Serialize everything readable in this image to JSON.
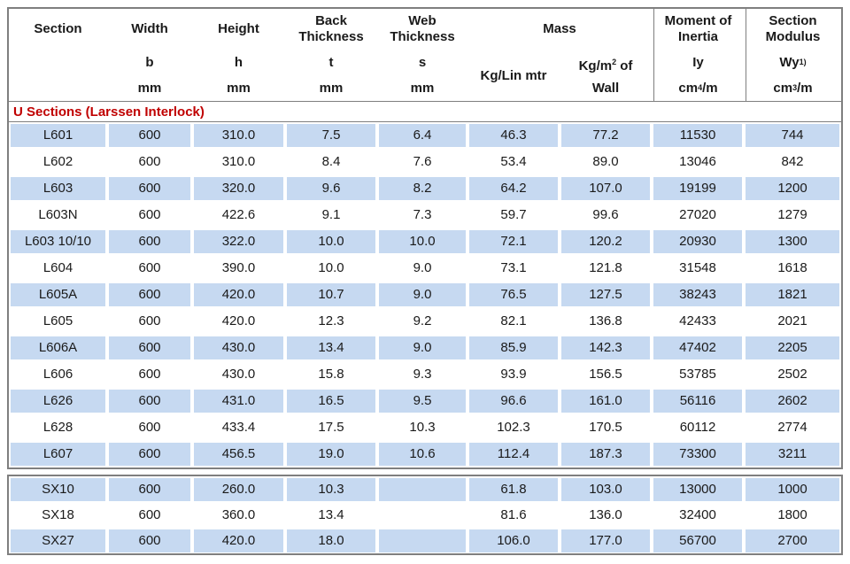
{
  "colors": {
    "row_stripe": "#c6d9f1",
    "border_gray": "#7f7f7f",
    "group_label_red": "#c00000"
  },
  "table": {
    "header": {
      "section": {
        "title": "Section"
      },
      "width": {
        "title": "Width",
        "symbol": "b",
        "unit": "mm"
      },
      "height": {
        "title": "Height",
        "symbol": "h",
        "unit": "mm"
      },
      "back_thickness": {
        "title_line1": "Back",
        "title_line2": "Thickness",
        "symbol": "t",
        "unit": "mm"
      },
      "web_thickness": {
        "title_line1": "Web",
        "title_line2": "Thickness",
        "symbol": "s",
        "unit": "mm"
      },
      "mass": {
        "title": "Mass",
        "sub1": "Kg/Lin mtr",
        "sub2_pre": "Kg/m",
        "sub2_sup": "2",
        "sub2_post": " of",
        "sub2_line2": "Wall"
      },
      "moment_of_inertia": {
        "title_line1": "Moment of",
        "title_line2": "Inertia",
        "symbol": "Iy",
        "unit_pre": "cm",
        "unit_sup": "4",
        "unit_post": "/m"
      },
      "section_modulus": {
        "title_line1": "Section",
        "title_line2": "Modulus",
        "symbol_pre": "Wy",
        "symbol_sup": "1)",
        "unit_pre": "cm",
        "unit_sup": "3",
        "unit_post": "/m"
      }
    },
    "group_label": "U Sections (Larssen Interlock)",
    "rows": [
      [
        "L601",
        "600",
        "310.0",
        "7.5",
        "6.4",
        "46.3",
        "77.2",
        "11530",
        "744"
      ],
      [
        "L602",
        "600",
        "310.0",
        "8.4",
        "7.6",
        "53.4",
        "89.0",
        "13046",
        "842"
      ],
      [
        "L603",
        "600",
        "320.0",
        "9.6",
        "8.2",
        "64.2",
        "107.0",
        "19199",
        "1200"
      ],
      [
        "L603N",
        "600",
        "422.6",
        "9.1",
        "7.3",
        "59.7",
        "99.6",
        "27020",
        "1279"
      ],
      [
        "L603 10/10",
        "600",
        "322.0",
        "10.0",
        "10.0",
        "72.1",
        "120.2",
        "20930",
        "1300"
      ],
      [
        "L604",
        "600",
        "390.0",
        "10.0",
        "9.0",
        "73.1",
        "121.8",
        "31548",
        "1618"
      ],
      [
        "L605A",
        "600",
        "420.0",
        "10.7",
        "9.0",
        "76.5",
        "127.5",
        "38243",
        "1821"
      ],
      [
        "L605",
        "600",
        "420.0",
        "12.3",
        "9.2",
        "82.1",
        "136.8",
        "42433",
        "2021"
      ],
      [
        "L606A",
        "600",
        "430.0",
        "13.4",
        "9.0",
        "85.9",
        "142.3",
        "47402",
        "2205"
      ],
      [
        "L606",
        "600",
        "430.0",
        "15.8",
        "9.3",
        "93.9",
        "156.5",
        "53785",
        "2502"
      ],
      [
        "L626",
        "600",
        "431.0",
        "16.5",
        "9.5",
        "96.6",
        "161.0",
        "56116",
        "2602"
      ],
      [
        "L628",
        "600",
        "433.4",
        "17.5",
        "10.3",
        "102.3",
        "170.5",
        "60112",
        "2774"
      ],
      [
        "L607",
        "600",
        "456.5",
        "19.0",
        "10.6",
        "112.4",
        "187.3",
        "73300",
        "3211"
      ]
    ],
    "sx_rows": [
      [
        "SX10",
        "600",
        "260.0",
        "10.3",
        "",
        "61.8",
        "103.0",
        "13000",
        "1000"
      ],
      [
        "SX18",
        "600",
        "360.0",
        "13.4",
        "",
        "81.6",
        "136.0",
        "32400",
        "1800"
      ],
      [
        "SX27",
        "600",
        "420.0",
        "18.0",
        "",
        "106.0",
        "177.0",
        "56700",
        "2700"
      ]
    ]
  }
}
